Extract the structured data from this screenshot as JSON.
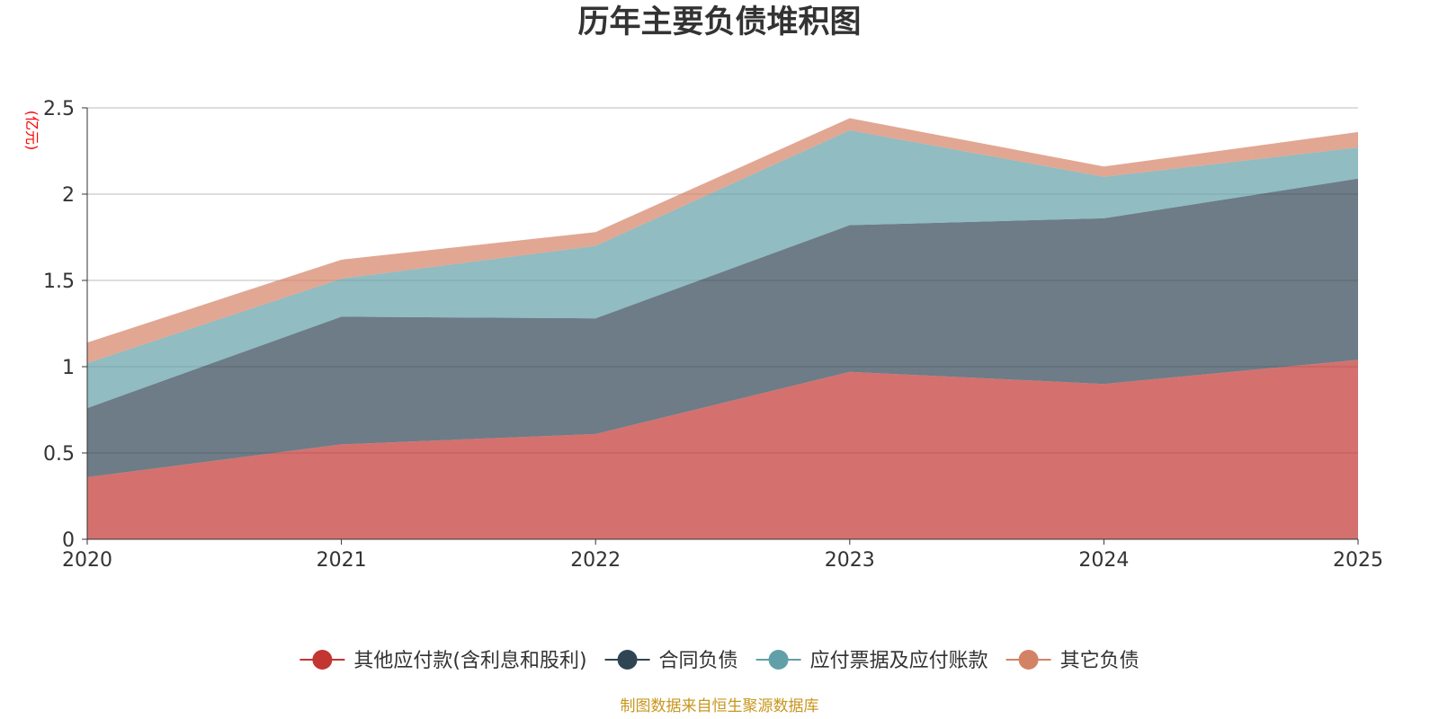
{
  "chart_data": {
    "type": "area",
    "stacked": true,
    "title": "历年主要负债堆积图",
    "unit_label": "(亿元)",
    "xlabel": "",
    "ylabel": "(亿元)",
    "categories": [
      "2020",
      "2021",
      "2022",
      "2023",
      "2024",
      "2025"
    ],
    "ylim": [
      0,
      2.5
    ],
    "yticks": [
      0,
      0.5,
      1,
      1.5,
      2,
      2.5
    ],
    "ytick_labels": [
      "0",
      "0.5",
      "1",
      "1.5",
      "2",
      "2.5"
    ],
    "grid": true,
    "legend_position": "bottom-center",
    "series": [
      {
        "name": "其他应付款(含利息和股利)",
        "color": "#c23531",
        "values": [
          0.36,
          0.55,
          0.61,
          0.97,
          0.9,
          1.04
        ]
      },
      {
        "name": "合同负债",
        "color": "#2f4554",
        "values": [
          0.4,
          0.74,
          0.67,
          0.85,
          0.96,
          1.05
        ]
      },
      {
        "name": "应付票据及应付账款",
        "color": "#61a0a8",
        "values": [
          0.26,
          0.22,
          0.42,
          0.55,
          0.24,
          0.18
        ]
      },
      {
        "name": "其它负债",
        "color": "#d48265",
        "values": [
          0.12,
          0.11,
          0.08,
          0.07,
          0.06,
          0.09
        ]
      }
    ],
    "source": "制图数据来自恒生聚源数据库"
  }
}
